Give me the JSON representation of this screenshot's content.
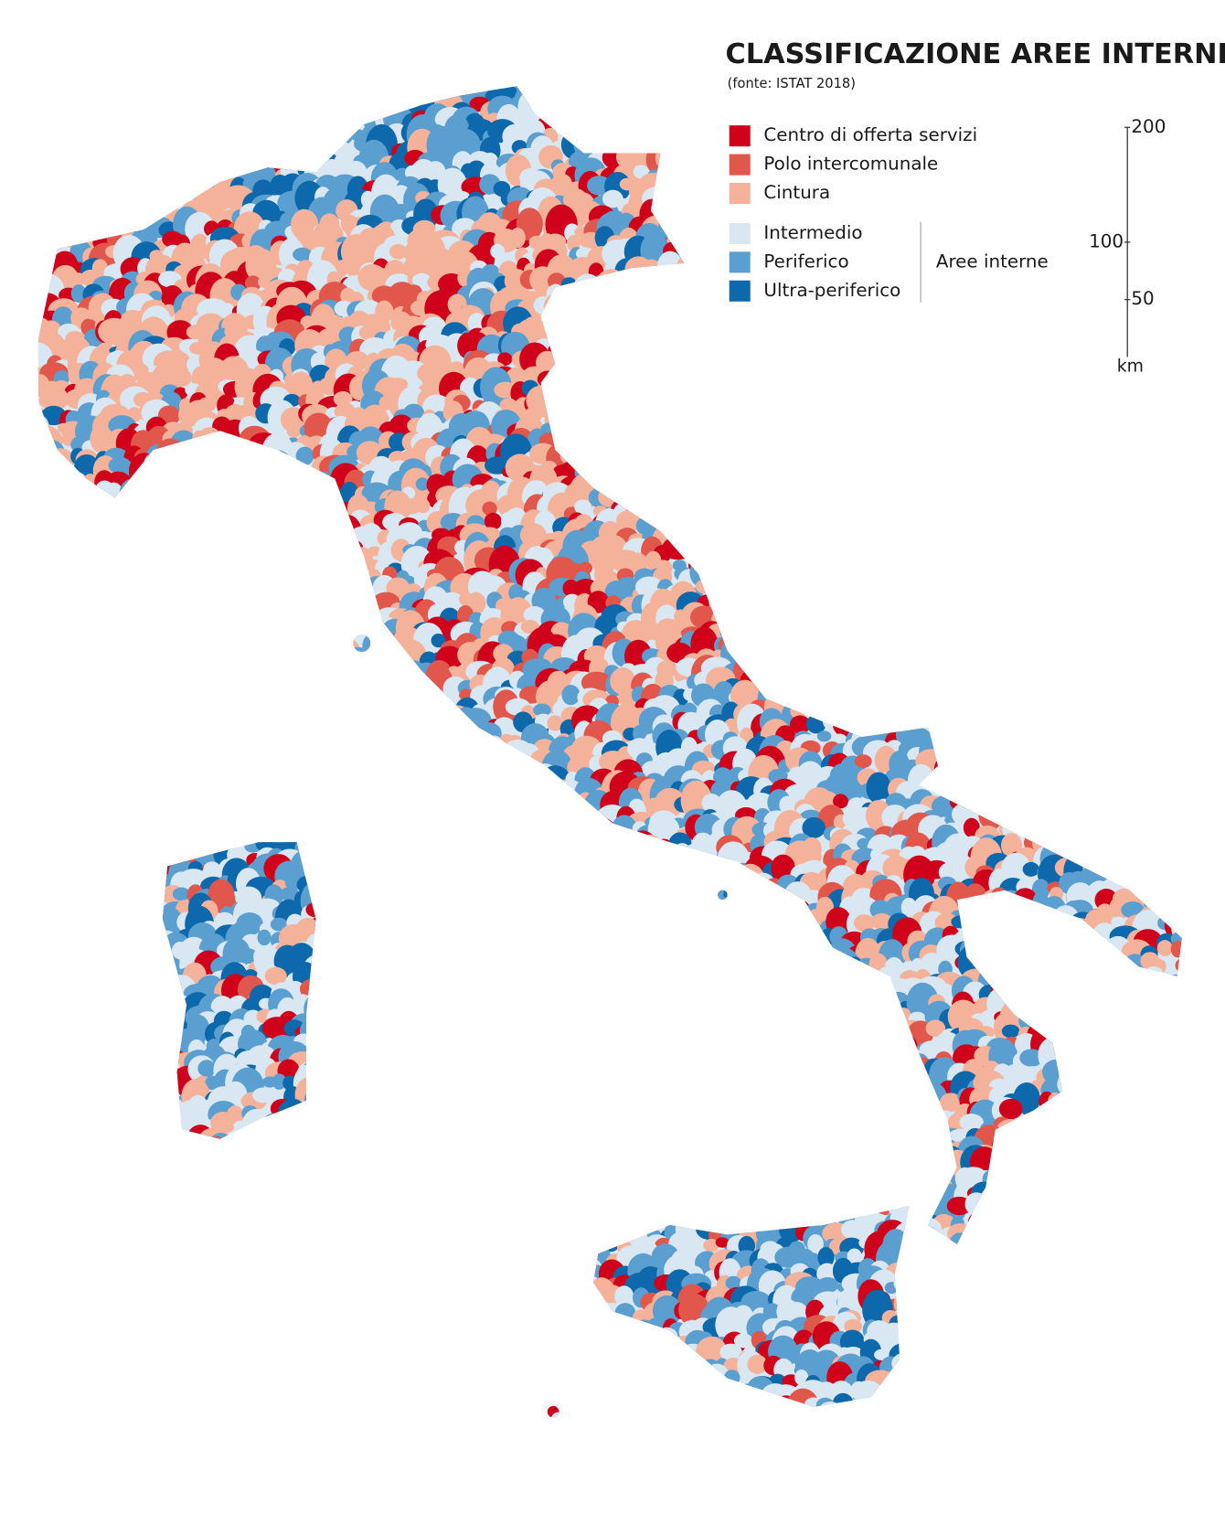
{
  "header": {
    "title": "CLASSIFICAZIONE AREE INTERNE",
    "subtitle": "(fonte: ISTAT 2018)"
  },
  "legend": {
    "items": [
      {
        "label": "Centro di offerta servizi",
        "color": "#d0021b"
      },
      {
        "label": "Polo intercomunale",
        "color": "#e2574c"
      },
      {
        "label": "Cintura",
        "color": "#f5b29a"
      },
      {
        "label": "Intermedio",
        "color": "#d8e7f1"
      },
      {
        "label": "Periferico",
        "color": "#5b9fd0"
      },
      {
        "label": "Ultra-periferico",
        "color": "#0d68ac"
      }
    ],
    "group_label": "Aree interne"
  },
  "scale": {
    "unit": "km",
    "lim": [
      0,
      200
    ],
    "ticks": [
      50,
      100,
      200
    ]
  }
}
